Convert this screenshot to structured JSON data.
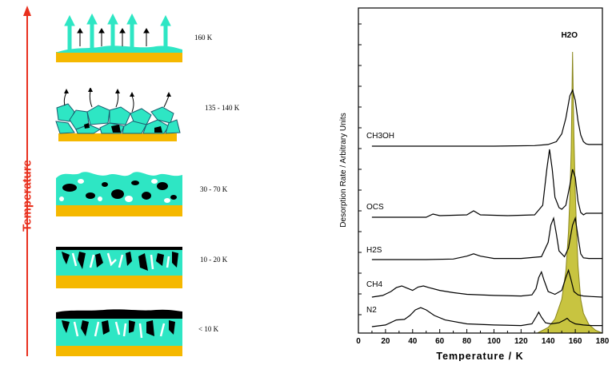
{
  "left_panel": {
    "axis_label": "Temperature",
    "stages": [
      {
        "label": "160 K"
      },
      {
        "label": "135 - 140 K"
      },
      {
        "label": "30 - 70 K"
      },
      {
        "label": "10 - 20 K"
      },
      {
        "label": "< 10 K"
      }
    ]
  },
  "chart_data": {
    "type": "line",
    "xlabel": "Temperature / K",
    "ylabel": "Desorption Rate / Arbitrary Units",
    "xlim": [
      0,
      180
    ],
    "xticks": [
      0,
      20,
      40,
      60,
      80,
      100,
      120,
      140,
      160,
      180
    ],
    "grid": false,
    "colors": {
      "traces": "#000000",
      "h2o_fill": "#c8c440",
      "h2o_stroke": "#8a861c",
      "axis_arrow": "#e8301e",
      "ice": "#2ee6c4",
      "substrate": "#f5b800"
    },
    "h2o": {
      "label": "H2O",
      "subscript": "2",
      "peak_x": 158,
      "x": [
        132,
        140,
        145,
        150,
        153,
        155,
        156,
        157,
        158,
        159,
        160,
        161,
        162,
        164,
        166,
        170,
        175,
        180
      ],
      "y": [
        0.0,
        0.02,
        0.05,
        0.12,
        0.22,
        0.36,
        0.48,
        0.65,
        1.0,
        0.7,
        0.5,
        0.36,
        0.24,
        0.12,
        0.07,
        0.03,
        0.01,
        0.0
      ]
    },
    "series": [
      {
        "name": "CH3OH",
        "subscript": "3",
        "x": [
          10,
          60,
          100,
          130,
          140,
          146,
          150,
          153,
          156,
          158,
          160,
          162,
          164,
          166,
          168,
          170,
          180
        ],
        "y": [
          0.0,
          0.0,
          0.0,
          0.01,
          0.03,
          0.08,
          0.22,
          0.5,
          0.9,
          1.0,
          0.82,
          0.45,
          0.2,
          0.08,
          0.04,
          0.03,
          0.03
        ]
      },
      {
        "name": "OCS",
        "x": [
          10,
          50,
          55,
          60,
          80,
          85,
          90,
          110,
          130,
          136,
          139,
          141,
          143,
          145,
          148,
          150,
          153,
          156,
          158,
          160,
          162,
          164,
          166,
          168,
          180
        ],
        "y": [
          0.0,
          0.0,
          0.04,
          0.02,
          0.03,
          0.08,
          0.03,
          0.02,
          0.03,
          0.15,
          0.6,
          0.85,
          0.6,
          0.25,
          0.12,
          0.1,
          0.15,
          0.4,
          0.6,
          0.5,
          0.2,
          0.06,
          0.03,
          0.05,
          0.05
        ]
      },
      {
        "name": "H2S",
        "subscript": "2",
        "x": [
          10,
          50,
          70,
          80,
          85,
          90,
          100,
          120,
          135,
          140,
          142,
          144,
          146,
          148,
          152,
          155,
          158,
          160,
          162,
          164,
          166,
          170,
          180
        ],
        "y": [
          0.0,
          0.0,
          0.01,
          0.06,
          0.1,
          0.06,
          0.02,
          0.02,
          0.05,
          0.3,
          0.6,
          0.72,
          0.45,
          0.15,
          0.05,
          0.2,
          0.6,
          0.72,
          0.4,
          0.1,
          0.03,
          0.02,
          0.02
        ]
      },
      {
        "name": "CH4",
        "subscript": "4",
        "x": [
          10,
          18,
          24,
          28,
          32,
          36,
          40,
          44,
          48,
          52,
          60,
          70,
          80,
          100,
          120,
          128,
          131,
          133,
          135,
          137,
          140,
          145,
          150,
          153,
          155,
          157,
          159,
          162,
          166,
          172,
          180
        ],
        "y": [
          0.0,
          0.03,
          0.1,
          0.17,
          0.2,
          0.16,
          0.12,
          0.18,
          0.2,
          0.17,
          0.12,
          0.08,
          0.05,
          0.03,
          0.02,
          0.04,
          0.15,
          0.35,
          0.45,
          0.3,
          0.1,
          0.05,
          0.12,
          0.35,
          0.48,
          0.3,
          0.1,
          0.04,
          0.02,
          0.01,
          0.0
        ]
      },
      {
        "name": "N2",
        "subscript": "2",
        "x": [
          10,
          20,
          28,
          34,
          38,
          42,
          46,
          50,
          56,
          64,
          80,
          100,
          120,
          128,
          131,
          133,
          135,
          138,
          142,
          148,
          152,
          154,
          156,
          160,
          166,
          172,
          180
        ],
        "y": [
          0.0,
          0.03,
          0.12,
          0.13,
          0.2,
          0.3,
          0.34,
          0.3,
          0.2,
          0.12,
          0.05,
          0.03,
          0.02,
          0.05,
          0.17,
          0.26,
          0.17,
          0.07,
          0.05,
          0.07,
          0.12,
          0.15,
          0.1,
          0.05,
          0.03,
          0.02,
          0.02
        ]
      }
    ]
  }
}
